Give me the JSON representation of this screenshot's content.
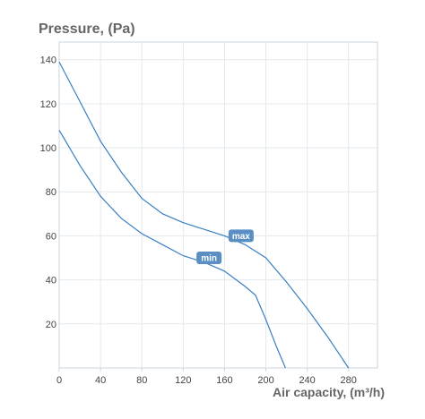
{
  "chart_data": {
    "type": "line",
    "ylabel": "Pressure, (Pa)",
    "xlabel": "Air capacity, (m³/h)",
    "xlim": [
      0,
      308
    ],
    "ylim": [
      0,
      148
    ],
    "x_ticks": [
      0,
      40,
      80,
      120,
      160,
      200,
      240,
      280
    ],
    "y_ticks": [
      20,
      40,
      60,
      80,
      100,
      120,
      140
    ],
    "grid": true,
    "line_color": "#3a7fc2",
    "badge_color": "#5b8fc4",
    "series": [
      {
        "name": "max",
        "points": [
          [
            0,
            139
          ],
          [
            20,
            121
          ],
          [
            40,
            103
          ],
          [
            60,
            89
          ],
          [
            80,
            77
          ],
          [
            100,
            70
          ],
          [
            120,
            66
          ],
          [
            140,
            63
          ],
          [
            160,
            60
          ],
          [
            180,
            56
          ],
          [
            200,
            50
          ],
          [
            220,
            39
          ],
          [
            240,
            27
          ],
          [
            260,
            14
          ],
          [
            280,
            0
          ]
        ]
      },
      {
        "name": "min",
        "points": [
          [
            0,
            108
          ],
          [
            20,
            92
          ],
          [
            40,
            78
          ],
          [
            50,
            73
          ],
          [
            60,
            68
          ],
          [
            80,
            61
          ],
          [
            100,
            56
          ],
          [
            120,
            51
          ],
          [
            140,
            48
          ],
          [
            160,
            44
          ],
          [
            180,
            37
          ],
          [
            190,
            33
          ],
          [
            200,
            22
          ],
          [
            210,
            10
          ],
          [
            219,
            0
          ]
        ]
      }
    ],
    "labels": [
      {
        "text": "max",
        "series": "max",
        "x": 176,
        "y": 60
      },
      {
        "text": "min",
        "series": "min",
        "x": 145,
        "y": 50
      }
    ]
  }
}
